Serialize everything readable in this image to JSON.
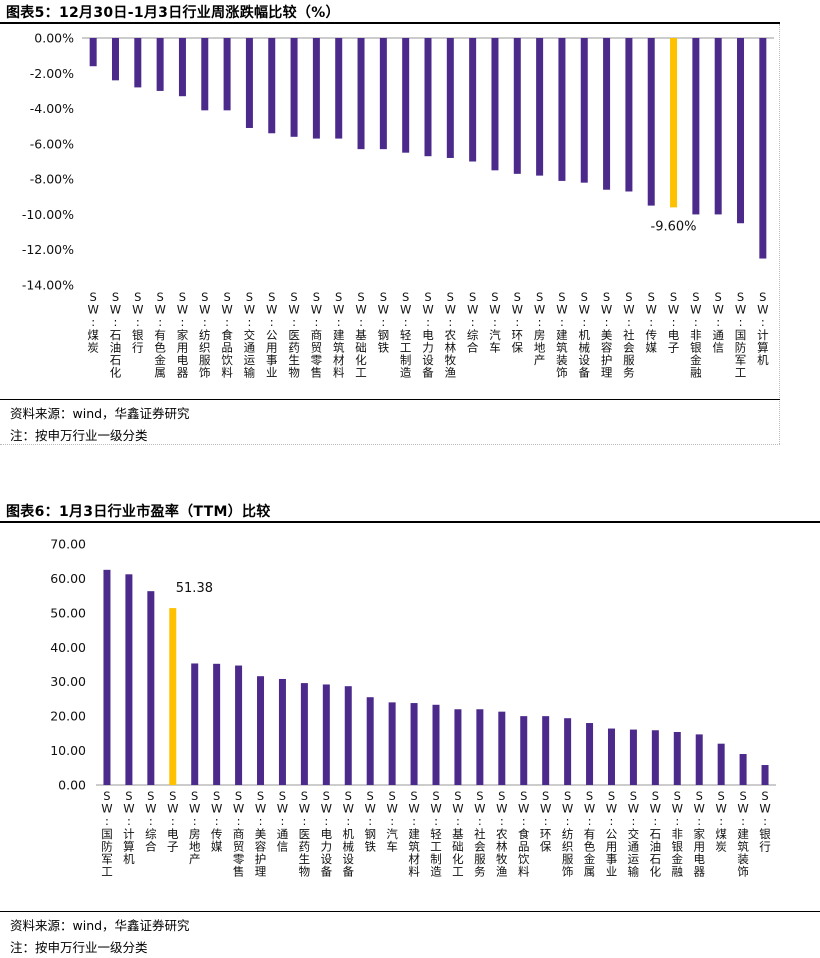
{
  "chart1": {
    "title": "图表5：12月30日-1月3日行业周涨跌幅比较（%）",
    "source": "资料来源：wind，华鑫证券研究",
    "note": "注：按申万行业一级分类",
    "highlight_label": "-9.60%",
    "highlight_index": 26
  },
  "chart2": {
    "title": "图表6：1月3日行业市盈率（TTM）比较",
    "source": "资料来源：wind，华鑫证券研究",
    "note": "注：按申万行业一级分类",
    "highlight_label": "51.38",
    "highlight_index": 3
  },
  "colors": {
    "bar": "#4b2a8c",
    "highlight": "#ffc000"
  },
  "chart_data": [
    {
      "type": "bar",
      "title": "图表5：12月30日-1月3日行业周涨跌幅比较（%）",
      "xlabel": "",
      "ylabel": "",
      "ylim": [
        -14,
        0
      ],
      "yticks": [
        "0.00%",
        "-2.00%",
        "-4.00%",
        "-6.00%",
        "-8.00%",
        "-10.00%",
        "-12.00%",
        "-14.00%"
      ],
      "categories": [
        "SW:煤炭",
        "SW:石油石化",
        "SW:银行",
        "SW:有色金属",
        "SW:家用电器",
        "SW:纺织服饰",
        "SW:食品饮料",
        "SW:交通运输",
        "SW:公用事业",
        "SW:医药生物",
        "SW:商贸零售",
        "SW:建筑材料",
        "SW:基础化工",
        "SW:钢铁",
        "SW:轻工制造",
        "SW:电力设备",
        "SW:农林牧渔",
        "SW:综合",
        "SW:汽车",
        "SW:环保",
        "SW:房地产",
        "SW:建筑装饰",
        "SW:机械设备",
        "SW:美容护理",
        "SW:社会服务",
        "SW:传媒",
        "SW:电子",
        "SW:非银金融",
        "SW:通信",
        "SW:国防军工",
        "SW:计算机"
      ],
      "values": [
        -1.6,
        -2.4,
        -2.8,
        -3.0,
        -3.3,
        -4.1,
        -4.1,
        -5.1,
        -5.4,
        -5.6,
        -5.7,
        -5.7,
        -6.3,
        -6.3,
        -6.5,
        -6.7,
        -6.8,
        -7.0,
        -7.5,
        -7.7,
        -7.8,
        -8.1,
        -8.2,
        -8.6,
        -8.7,
        -9.5,
        -9.6,
        -10.0,
        -10.0,
        -10.5,
        -12.5
      ]
    },
    {
      "type": "bar",
      "title": "图表6：1月3日行业市盈率（TTM）比较",
      "xlabel": "",
      "ylabel": "",
      "ylim": [
        0,
        70
      ],
      "yticks": [
        "70.00",
        "60.00",
        "50.00",
        "40.00",
        "30.00",
        "20.00",
        "10.00",
        "0.00"
      ],
      "categories": [
        "SW:国防军工",
        "SW:计算机",
        "SW:综合",
        "SW:电子",
        "SW:房地产",
        "SW:传媒",
        "SW:商贸零售",
        "SW:美容护理",
        "SW:通信",
        "SW:医药生物",
        "SW:电力设备",
        "SW:机械设备",
        "SW:钢铁",
        "SW:汽车",
        "SW:建筑材料",
        "SW:轻工制造",
        "SW:基础化工",
        "SW:社会服务",
        "SW:农林牧渔",
        "SW:食品饮料",
        "SW:环保",
        "SW:纺织服饰",
        "SW:有色金属",
        "SW:公用事业",
        "SW:交通运输",
        "SW:石油石化",
        "SW:非银金融",
        "SW:家用电器",
        "SW:煤炭",
        "SW:建筑装饰",
        "SW:银行"
      ],
      "values": [
        62.5,
        61.2,
        56.3,
        51.38,
        35.3,
        35.2,
        34.7,
        31.6,
        30.8,
        29.6,
        29.2,
        28.7,
        25.5,
        24.0,
        23.8,
        23.3,
        22.0,
        22.0,
        21.3,
        20.0,
        20.0,
        19.4,
        18.0,
        16.4,
        16.1,
        15.9,
        15.4,
        14.7,
        12.0,
        9.0,
        5.8
      ]
    }
  ]
}
